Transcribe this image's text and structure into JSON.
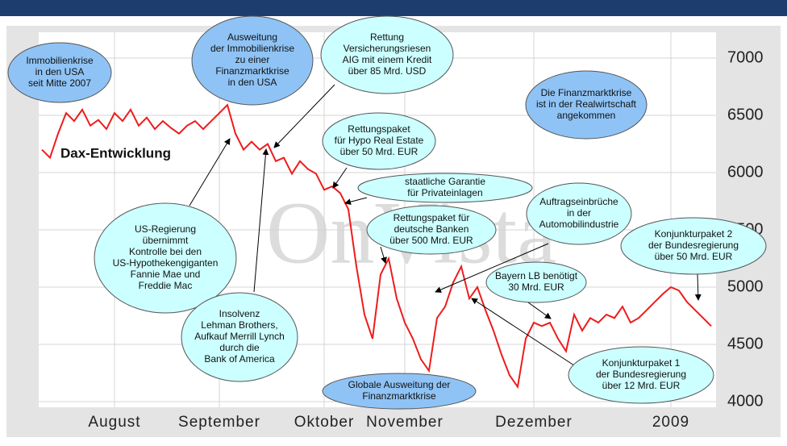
{
  "chart_data": {
    "type": "line",
    "series_label": "Dax-Entwicklung",
    "watermark": "OnVista",
    "categories": [
      null,
      null,
      null,
      null,
      null,
      null,
      null,
      null,
      null,
      "August",
      null,
      null,
      null,
      null,
      null,
      null,
      null,
      null,
      null,
      null,
      null,
      null,
      "September",
      null,
      null,
      null,
      null,
      null,
      null,
      null,
      null,
      null,
      null,
      null,
      null,
      "Oktober",
      null,
      null,
      null,
      null,
      null,
      null,
      null,
      null,
      null,
      "November",
      null,
      null,
      null,
      null,
      null,
      null,
      null,
      null,
      null,
      null,
      null,
      null,
      null,
      null,
      null,
      "Dezember",
      null,
      null,
      null,
      null,
      null,
      null,
      null,
      null,
      null,
      null,
      null,
      null,
      null,
      null,
      null,
      null,
      "2009",
      null,
      null,
      null,
      null,
      null
    ],
    "series": [
      {
        "name": "Dax-Entwicklung",
        "color": "#ee1c1c",
        "values": [
          6200,
          6130,
          6340,
          6520,
          6450,
          6550,
          6410,
          6460,
          6380,
          6520,
          6450,
          6550,
          6410,
          6480,
          6380,
          6450,
          6390,
          6340,
          6410,
          6450,
          6380,
          6450,
          6520,
          6590,
          6340,
          6200,
          6270,
          6200,
          6250,
          6100,
          6130,
          5990,
          6100,
          6030,
          5990,
          5850,
          5880,
          5820,
          5680,
          5180,
          4760,
          4550,
          5110,
          5250,
          4900,
          4690,
          4550,
          4370,
          4270,
          4730,
          4830,
          5040,
          5180,
          4900,
          5000,
          4800,
          4620,
          4410,
          4230,
          4130,
          4550,
          4690,
          4660,
          4690,
          4550,
          4440,
          4760,
          4620,
          4730,
          4690,
          4760,
          4730,
          4830,
          4690,
          4730,
          4800,
          4870,
          4940,
          5000,
          4970,
          4870,
          4800,
          4730,
          4660
        ]
      }
    ],
    "ylim": [
      4000,
      7000
    ],
    "yticks": [
      4000,
      4500,
      5000,
      5500,
      6000,
      6500,
      7000
    ],
    "grid": true,
    "annotations": [
      {
        "lines": [
          "Immobilienkrise",
          "in den USA",
          "seit Mitte 2007"
        ]
      },
      {
        "lines": [
          "Ausweitung",
          "der Immobilienkrise",
          "zu einer",
          "Finanzmarktkrise",
          "in den USA"
        ]
      },
      {
        "lines": [
          "Rettung",
          "Versicherungsriesen",
          "AIG mit einem Kredit",
          "über  85 Mrd. USD"
        ]
      },
      {
        "lines": [
          "Die Finanzmarktkrise",
          "ist in der Realwirtschaft",
          "angekommen"
        ]
      },
      {
        "lines": [
          "Rettungspaket",
          "für Hypo Real Estate",
          "über 50 Mrd. EUR"
        ]
      },
      {
        "lines": [
          "staatliche Garantie",
          "für Privateinlagen"
        ]
      },
      {
        "lines": [
          "Rettungspaket für",
          "deutsche Banken",
          "über 500 Mrd. EUR"
        ]
      },
      {
        "lines": [
          "Auftragseinbrüche",
          "in der",
          "Automobilindustrie"
        ]
      },
      {
        "lines": [
          "Konjunkturpaket 2",
          "der Bundesregierung",
          "über 50 Mrd. EUR"
        ]
      },
      {
        "lines": [
          "US-Regierung",
          "übernimmt",
          "Kontrolle bei den",
          "US-Hypothekengiganten",
          "Fannie Mae und",
          "Freddie Mac"
        ]
      },
      {
        "lines": [
          "Bayern LB benötigt",
          "30 Mrd. EUR"
        ]
      },
      {
        "lines": [
          "Insolvenz",
          "Lehman Brothers,",
          "Aufkauf Merrill Lynch",
          "durch die",
          "Bank of America"
        ]
      },
      {
        "lines": [
          "Konjunkturpaket 1",
          "der Bundesregierung",
          "über 12 Mrd. EUR"
        ]
      },
      {
        "lines": [
          "Globale Ausweitung der",
          "Finanzmarktkrise"
        ]
      }
    ]
  }
}
